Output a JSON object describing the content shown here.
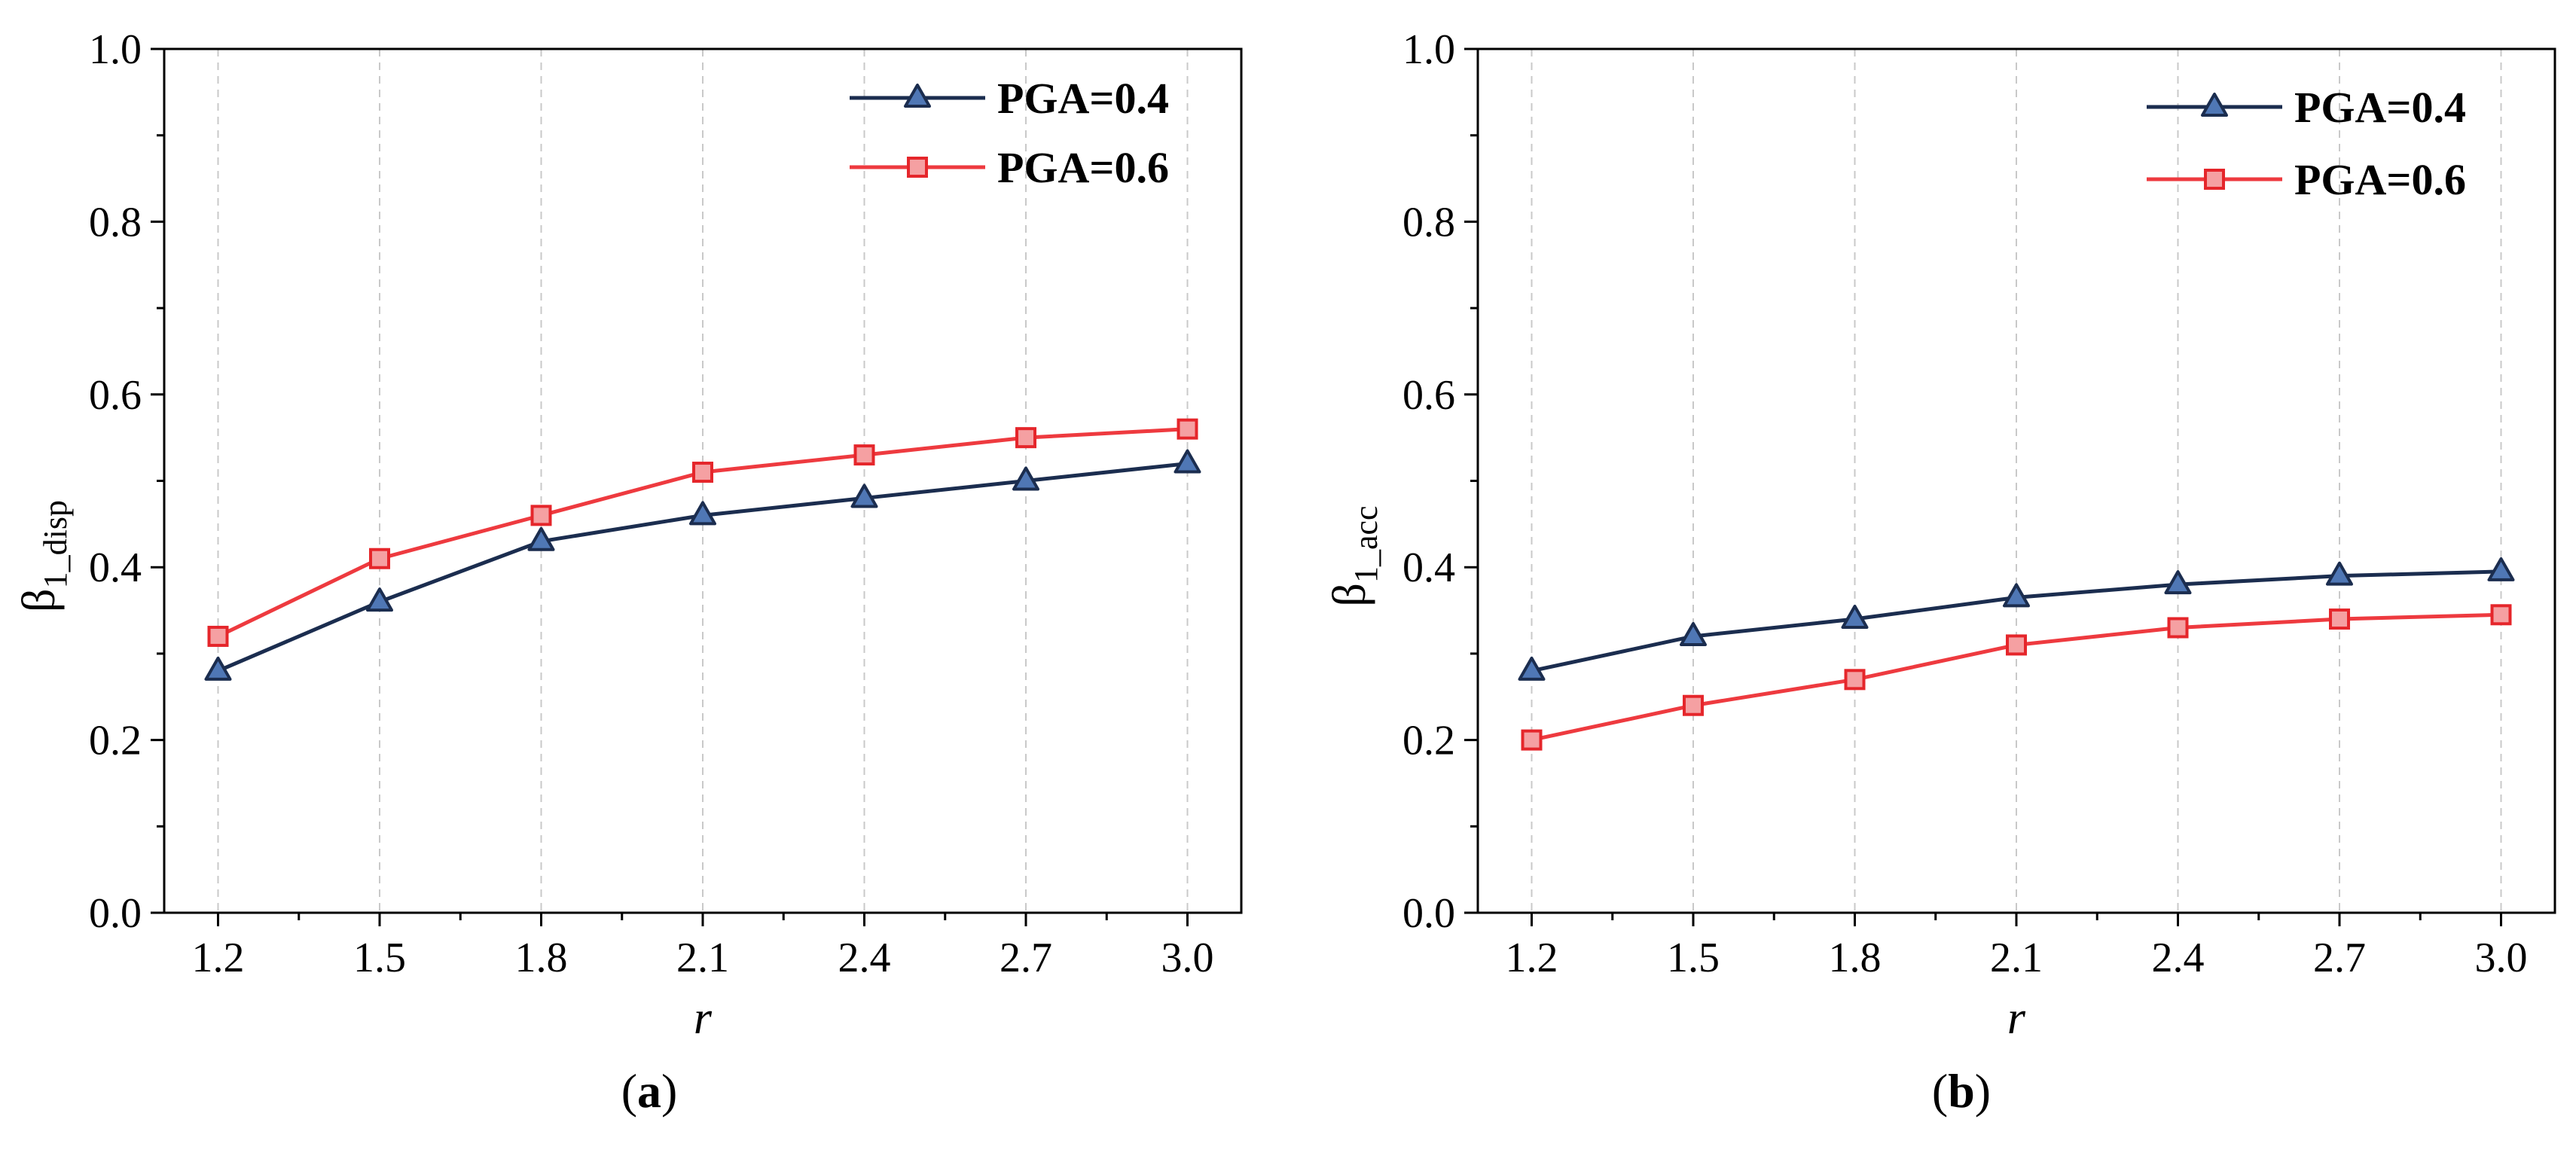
{
  "chart_data": [
    {
      "panel": "a",
      "type": "line",
      "panel_label_open": "(",
      "panel_label_letter": "a",
      "panel_label_close": ")",
      "xlabel": "r",
      "ylabel_main": "β",
      "ylabel_sub": "1_disp",
      "x": [
        1.2,
        1.5,
        1.8,
        2.1,
        2.4,
        2.7,
        3.0
      ],
      "x_tick_labels": [
        "1.2",
        "1.5",
        "1.8",
        "2.1",
        "2.4",
        "2.7",
        "3.0"
      ],
      "y_ticks": [
        0.0,
        0.2,
        0.4,
        0.6,
        0.8,
        1.0
      ],
      "y_tick_labels": [
        "0.0",
        "0.2",
        "0.4",
        "0.6",
        "0.8",
        "1.0"
      ],
      "xlim": [
        1.1,
        3.1
      ],
      "ylim": [
        0.0,
        1.0
      ],
      "grid": "vertical dashed",
      "legend_position": "top-right",
      "series": [
        {
          "name": "PGA=0.4",
          "marker": "triangle",
          "line_color": "#1b2d4f",
          "marker_fill": "#4f77b5",
          "marker_stroke": "#1b2d4f",
          "values": [
            0.28,
            0.36,
            0.43,
            0.46,
            0.48,
            0.5,
            0.52
          ]
        },
        {
          "name": "PGA=0.6",
          "marker": "square",
          "line_color": "#ee3a3f",
          "marker_fill": "#f5a0a2",
          "marker_stroke": "#e5262b",
          "values": [
            0.32,
            0.41,
            0.46,
            0.51,
            0.53,
            0.55,
            0.56
          ]
        }
      ]
    },
    {
      "panel": "b",
      "type": "line",
      "panel_label_open": "(",
      "panel_label_letter": "b",
      "panel_label_close": ")",
      "xlabel": "r",
      "ylabel_main": "β",
      "ylabel_sub": "1_acc",
      "x": [
        1.2,
        1.5,
        1.8,
        2.1,
        2.4,
        2.7,
        3.0
      ],
      "x_tick_labels": [
        "1.2",
        "1.5",
        "1.8",
        "2.1",
        "2.4",
        "2.7",
        "3.0"
      ],
      "y_ticks": [
        0.0,
        0.2,
        0.4,
        0.6,
        0.8,
        1.0
      ],
      "y_tick_labels": [
        "0.0",
        "0.2",
        "0.4",
        "0.6",
        "0.8",
        "1.0"
      ],
      "xlim": [
        1.1,
        3.1
      ],
      "ylim": [
        0.0,
        1.0
      ],
      "grid": "vertical dashed",
      "legend_position": "top-right",
      "series": [
        {
          "name": "PGA=0.4",
          "marker": "triangle",
          "line_color": "#1b2d4f",
          "marker_fill": "#4f77b5",
          "marker_stroke": "#1b2d4f",
          "values": [
            0.28,
            0.32,
            0.34,
            0.365,
            0.38,
            0.39,
            0.395
          ]
        },
        {
          "name": "PGA=0.6",
          "marker": "square",
          "line_color": "#ee3a3f",
          "marker_fill": "#f5a0a2",
          "marker_stroke": "#e5262b",
          "values": [
            0.2,
            0.24,
            0.27,
            0.31,
            0.33,
            0.34,
            0.345
          ]
        }
      ]
    }
  ]
}
